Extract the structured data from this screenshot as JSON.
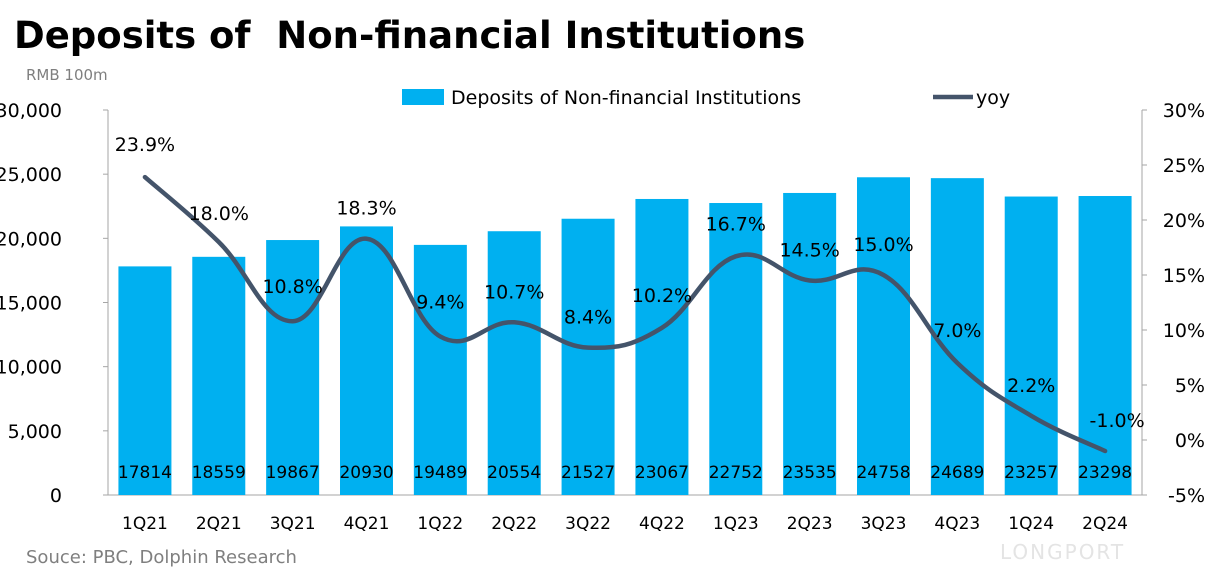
{
  "chart_data": {
    "type": "bar+line",
    "title": "Deposits of  Non-financial Institutions",
    "unit_label": "RMB 100m",
    "source": "Souce: PBC, Dolphin Research",
    "watermark": "LONGPORT",
    "categories": [
      "1Q21",
      "2Q21",
      "3Q21",
      "4Q21",
      "1Q22",
      "2Q22",
      "3Q22",
      "4Q22",
      "1Q23",
      "2Q23",
      "3Q23",
      "4Q23",
      "1Q24",
      "2Q24"
    ],
    "series": [
      {
        "name": "Deposits of  Non-financial Institutions",
        "type": "bar",
        "axis": "left",
        "color": "#00b0f0",
        "values": [
          17814,
          18559,
          19867,
          20930,
          19489,
          20554,
          21527,
          23067,
          22752,
          23535,
          24758,
          24689,
          23257,
          23298
        ]
      },
      {
        "name": "yoy",
        "type": "line",
        "axis": "right",
        "color": "#44546a",
        "values": [
          23.9,
          18.0,
          10.8,
          18.3,
          9.4,
          10.7,
          8.4,
          10.2,
          16.7,
          14.5,
          15.0,
          7.0,
          2.2,
          -1.0
        ],
        "labels": [
          "23.9%",
          "18.0%",
          "10.8%",
          "18.3%",
          "9.4%",
          "10.7%",
          "8.4%",
          "10.2%",
          "16.7%",
          "14.5%",
          "15.0%",
          "7.0%",
          "2.2%",
          "-1.0%"
        ]
      }
    ],
    "y_left": {
      "lim": [
        0,
        30000
      ],
      "ticks": [
        "0",
        "5,000",
        "10,000",
        "15,000",
        "20,000",
        "25,000",
        "30,000"
      ]
    },
    "y_right": {
      "lim": [
        -5,
        30
      ],
      "ticks": [
        "-5%",
        "0%",
        "5%",
        "10%",
        "15%",
        "20%",
        "25%",
        "30%"
      ]
    },
    "legend": "top",
    "grid": false
  }
}
